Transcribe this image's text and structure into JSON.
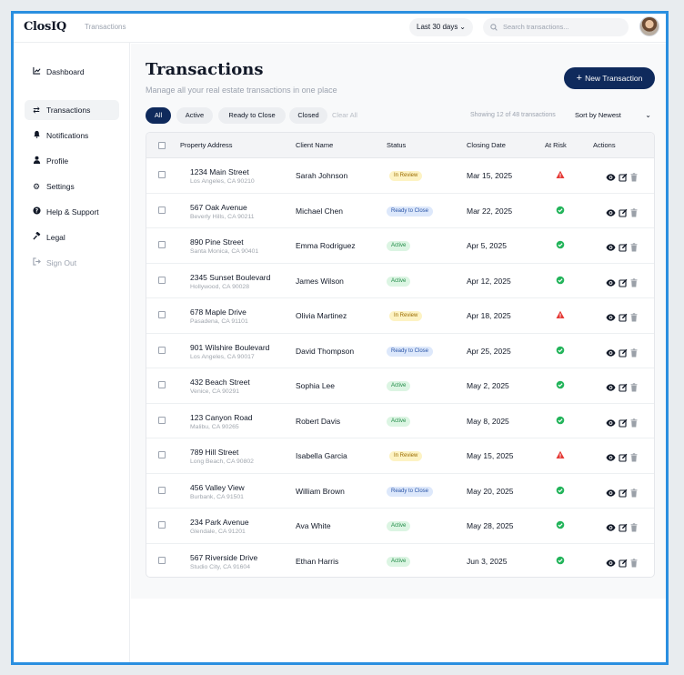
{
  "app": {
    "logo": "ClosIQ",
    "breadcrumb": "Transactions"
  },
  "header": {
    "period_label": "Last 30 days",
    "search_placeholder": "Search transactions..."
  },
  "sidebar": {
    "items": [
      {
        "label": "Dashboard",
        "icon": "chart-line-icon"
      },
      {
        "label": "Transactions",
        "icon": "swap-arrows-icon",
        "active": true
      },
      {
        "label": "Notifications",
        "icon": "bell-icon"
      },
      {
        "label": "Profile",
        "icon": "user-icon"
      },
      {
        "label": "Settings",
        "icon": "gear-icon"
      },
      {
        "label": "Help & Support",
        "icon": "question-circle-icon"
      },
      {
        "label": "Legal",
        "icon": "gavel-icon"
      },
      {
        "label": "Sign Out",
        "icon": "sign-out-icon",
        "muted": true
      }
    ]
  },
  "page": {
    "title": "Transactions",
    "subtitle": "Manage all your real estate transactions in one place",
    "new_button": "New Transaction"
  },
  "filters": {
    "chips": [
      "All",
      "Active",
      "Ready to Close",
      "Closed"
    ],
    "selected": "All",
    "clear": "Clear All",
    "showing": "Showing 12 of 48 transactions",
    "sort": "Sort by Newest"
  },
  "table": {
    "headers": {
      "address": "Property Address",
      "client": "Client Name",
      "status": "Status",
      "date": "Closing Date",
      "risk": "At Risk",
      "actions": "Actions"
    },
    "rows": [
      {
        "address": "1234 Main Street",
        "city": "Los Angeles, CA 90210",
        "client": "Sarah Johnson",
        "status": "In Review",
        "date": "Mar 15, 2025",
        "at_risk": true
      },
      {
        "address": "567 Oak Avenue",
        "city": "Beverly Hills, CA 90211",
        "client": "Michael Chen",
        "status": "Ready to Close",
        "date": "Mar 22, 2025",
        "at_risk": false
      },
      {
        "address": "890 Pine Street",
        "city": "Santa Monica, CA 90401",
        "client": "Emma Rodriguez",
        "status": "Active",
        "date": "Apr 5, 2025",
        "at_risk": false
      },
      {
        "address": "2345 Sunset Boulevard",
        "city": "Hollywood, CA 90028",
        "client": "James Wilson",
        "status": "Active",
        "date": "Apr 12, 2025",
        "at_risk": false
      },
      {
        "address": "678 Maple Drive",
        "city": "Pasadena, CA 91101",
        "client": "Olivia Martinez",
        "status": "In Review",
        "date": "Apr 18, 2025",
        "at_risk": true
      },
      {
        "address": "901 Wilshire Boulevard",
        "city": "Los Angeles, CA 90017",
        "client": "David Thompson",
        "status": "Ready to Close",
        "date": "Apr 25, 2025",
        "at_risk": false
      },
      {
        "address": "432 Beach Street",
        "city": "Venice, CA 90291",
        "client": "Sophia Lee",
        "status": "Active",
        "date": "May 2, 2025",
        "at_risk": false
      },
      {
        "address": "123 Canyon Road",
        "city": "Malibu, CA 90265",
        "client": "Robert Davis",
        "status": "Active",
        "date": "May 8, 2025",
        "at_risk": false
      },
      {
        "address": "789 Hill Street",
        "city": "Long Beach, CA 90802",
        "client": "Isabella Garcia",
        "status": "In Review",
        "date": "May 15, 2025",
        "at_risk": true
      },
      {
        "address": "456 Valley View",
        "city": "Burbank, CA 91501",
        "client": "William Brown",
        "status": "Ready to Close",
        "date": "May 20, 2025",
        "at_risk": false
      },
      {
        "address": "234 Park Avenue",
        "city": "Glendale, CA 91201",
        "client": "Ava White",
        "status": "Active",
        "date": "May 28, 2025",
        "at_risk": false
      },
      {
        "address": "567 Riverside Drive",
        "city": "Studio City, CA 91604",
        "client": "Ethan Harris",
        "status": "Active",
        "date": "Jun 3, 2025",
        "at_risk": false
      }
    ]
  },
  "colors": {
    "brand_navy": "#0f2a5c",
    "frame_blue": "#2a8fe0",
    "status_in_review_bg": "#fdf3c4",
    "status_in_review_fg": "#9a6b00",
    "status_ready_bg": "#dde8fb",
    "status_ready_fg": "#2a55a8",
    "status_active_bg": "#dcf5e3",
    "status_active_fg": "#1f8a46",
    "risk_red": "#e53935",
    "ok_green": "#22b45a"
  }
}
